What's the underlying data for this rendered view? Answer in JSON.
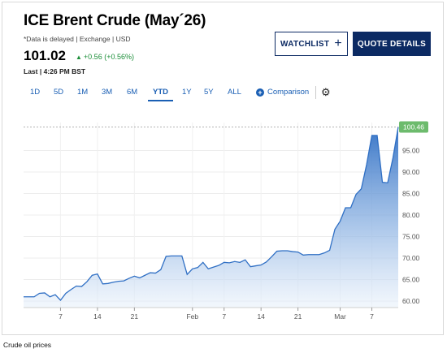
{
  "header": {
    "title": "ICE Brent Crude (May´26)",
    "meta": "*Data is delayed | Exchange | USD",
    "price": "101.02",
    "change": "+0.56 (+0.56%)",
    "last_time": "Last | 4:26 PM BST"
  },
  "buttons": {
    "watchlist": "WATCHLIST",
    "quote_details": "QUOTE DETAILS"
  },
  "tabs": [
    {
      "label": "1D",
      "active": false
    },
    {
      "label": "5D",
      "active": false
    },
    {
      "label": "1M",
      "active": false
    },
    {
      "label": "3M",
      "active": false
    },
    {
      "label": "6M",
      "active": false
    },
    {
      "label": "YTD",
      "active": true
    },
    {
      "label": "1Y",
      "active": false
    },
    {
      "label": "5Y",
      "active": false
    },
    {
      "label": "ALL",
      "active": false
    }
  ],
  "comparison_label": "Comparison",
  "colors": {
    "accent": "#1a5fb4",
    "navy": "#0c2a63",
    "positive": "#1d8f3a",
    "line": "#2f6fc4",
    "price_flag": "#6dbb6d"
  },
  "chart_data": {
    "type": "area",
    "xlabel": "",
    "ylabel": "",
    "y_ticks": [
      "60.00",
      "65.00",
      "70.00",
      "75.00",
      "80.00",
      "85.00",
      "90.00",
      "95.00"
    ],
    "ylim": [
      58.5,
      101.5
    ],
    "x_ticks": [
      {
        "label": "7",
        "day": 7
      },
      {
        "label": "14",
        "day": 14
      },
      {
        "label": "21",
        "day": 21
      },
      {
        "label": "Feb",
        "day": 32
      },
      {
        "label": "7",
        "day": 38
      },
      {
        "label": "14",
        "day": 45
      },
      {
        "label": "21",
        "day": 52
      },
      {
        "label": "Mar",
        "day": 60
      },
      {
        "label": "7",
        "day": 66
      }
    ],
    "last_price_label": "100.46",
    "last_price": 100.46,
    "grid": true,
    "x": [
      0,
      2,
      3,
      4,
      5,
      6,
      7,
      8,
      9,
      10,
      11,
      12,
      13,
      14,
      15,
      16,
      17,
      18,
      19,
      20,
      21,
      22,
      23,
      24,
      25,
      26,
      27,
      28,
      29,
      30,
      31,
      32,
      33,
      34,
      35,
      36,
      37,
      38,
      39,
      40,
      41,
      42,
      43,
      44,
      45,
      46,
      47,
      48,
      49,
      50,
      51,
      52,
      53,
      54,
      55,
      56,
      57,
      58,
      59,
      60,
      61,
      62,
      63,
      64,
      65,
      66,
      67,
      68,
      69,
      70,
      71
    ],
    "values": [
      61.0,
      61.0,
      61.8,
      61.9,
      61.0,
      61.5,
      60.2,
      61.8,
      62.7,
      63.5,
      63.4,
      64.5,
      66.0,
      66.3,
      64.0,
      64.1,
      64.4,
      64.6,
      64.7,
      65.3,
      65.8,
      65.4,
      66.0,
      66.6,
      66.5,
      67.3,
      70.4,
      70.5,
      70.5,
      70.5,
      66.2,
      67.5,
      67.8,
      69.0,
      67.5,
      67.9,
      68.3,
      69.0,
      68.9,
      69.2,
      69.0,
      69.6,
      68.0,
      68.2,
      68.4,
      69.1,
      70.3,
      71.6,
      71.7,
      71.7,
      71.5,
      71.4,
      70.7,
      70.8,
      70.8,
      70.8,
      71.2,
      71.8,
      76.7,
      78.6,
      81.7,
      81.7,
      84.8,
      86.1,
      91.7,
      98.5,
      98.5,
      87.6,
      87.5,
      93.3,
      100.46
    ]
  },
  "footer": {
    "caption": "Crude oil prices"
  }
}
